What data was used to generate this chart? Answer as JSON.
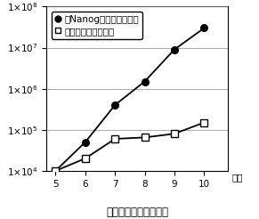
{
  "x": [
    5,
    6,
    7,
    8,
    9,
    10
  ],
  "nanog_y": [
    10000,
    50000,
    400000,
    1500000,
    9000000,
    30000000
  ],
  "control_y": [
    10000,
    20000,
    60000,
    65000,
    80000,
    150000
  ],
  "xlim": [
    4.7,
    10.8
  ],
  "ylim_log_min": 4,
  "ylim_log_max": 8,
  "xlabel": "間葉系幹細胞増殖曲線",
  "xlabel_right": "継代",
  "legend_nanog": "Nanog遣伝子導入細胞",
  "legend_control": "コントロール細胞",
  "nanog_color": "#000000",
  "control_color": "#000000",
  "bg_color": "#ffffff",
  "grid_color": "#888888",
  "title_fontsize": 8.5,
  "tick_fontsize": 7.5,
  "legend_fontsize": 7.5,
  "ytick_labels": [
    "$1{\\times}10^{4}$",
    "$1{\\times}10^{5}$",
    "$1{\\times}10^{6}$",
    "$1{\\times}10^{7}$",
    "$1{\\times}10^{8}$"
  ],
  "ytick_vals": [
    10000,
    100000,
    1000000,
    10000000,
    100000000
  ]
}
